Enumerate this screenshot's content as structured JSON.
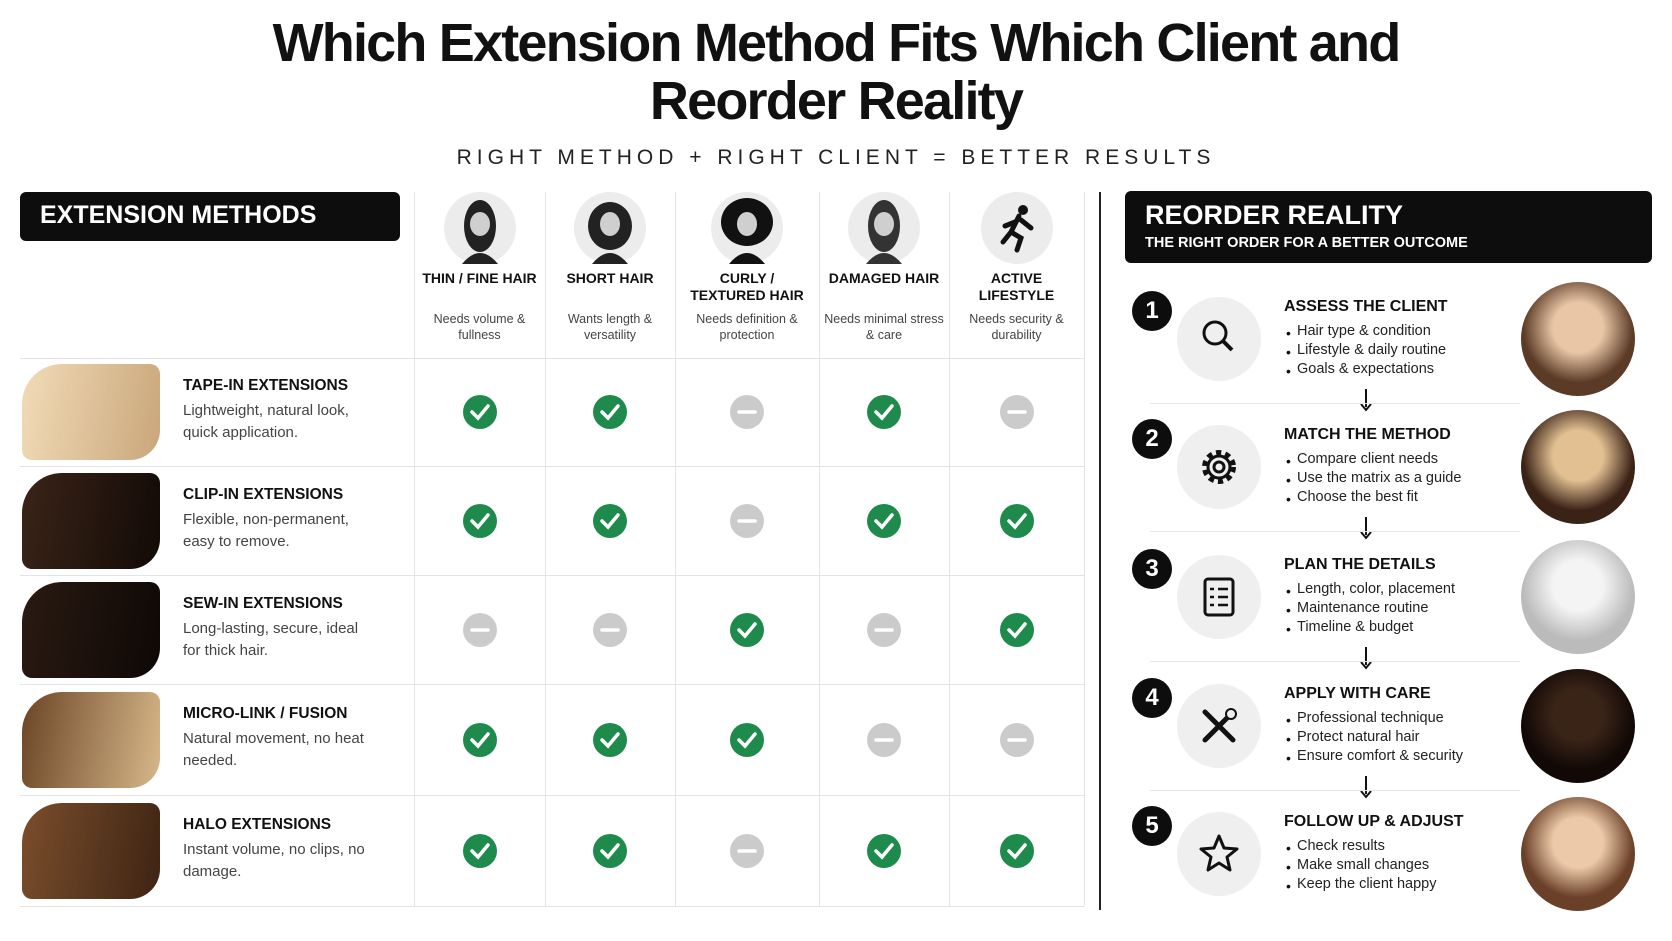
{
  "header": {
    "title": "Which Extension Method Fits Which Client and Reorder Reality",
    "subtitle": "RIGHT METHOD + RIGHT CLIENT = BETTER RESULTS"
  },
  "matrix": {
    "heading": "EXTENSION METHODS",
    "columns": [
      {
        "label": "THIN / FINE HAIR",
        "note": "Needs volume & fullness"
      },
      {
        "label": "SHORT HAIR",
        "note": "Wants length & versatility"
      },
      {
        "label": "CURLY / TEXTURED HAIR",
        "note": "Needs definition & protection"
      },
      {
        "label": "DAMAGED HAIR",
        "note": "Needs minimal stress & care"
      },
      {
        "label": "ACTIVE LIFESTYLE",
        "note": "Needs security & durability"
      }
    ],
    "rows": [
      {
        "name": "TAPE-IN EXTENSIONS",
        "description": "Lightweight, natural look, quick application.",
        "fits": [
          true,
          true,
          false,
          true,
          false
        ]
      },
      {
        "name": "CLIP-IN EXTENSIONS",
        "description": "Flexible, non-permanent, easy to remove.",
        "fits": [
          true,
          true,
          false,
          true,
          true
        ]
      },
      {
        "name": "SEW-IN EXTENSIONS",
        "description": "Long-lasting, secure, ideal for thick hair.",
        "fits": [
          false,
          false,
          true,
          false,
          true
        ]
      },
      {
        "name": "MICRO-LINK / FUSION",
        "description": "Natural movement, no heat needed.",
        "fits": [
          true,
          true,
          true,
          false,
          false
        ]
      },
      {
        "name": "HALO EXTENSIONS",
        "description": "Instant volume, no clips, no damage.",
        "fits": [
          true,
          true,
          false,
          true,
          true
        ]
      }
    ]
  },
  "reorder": {
    "heading": "REORDER REALITY",
    "subheading": "THE RIGHT ORDER FOR A BETTER OUTCOME",
    "steps": [
      {
        "number": 1,
        "title": "ASSESS THE CLIENT",
        "bullets": [
          "Hair type & condition",
          "Lifestyle & daily routine",
          "Goals & expectations"
        ]
      },
      {
        "number": 2,
        "title": "MATCH THE METHOD",
        "bullets": [
          "Compare client needs",
          "Use the matrix as a guide",
          "Choose the best fit"
        ]
      },
      {
        "number": 3,
        "title": "PLAN THE DETAILS",
        "bullets": [
          "Length, color, placement",
          "Maintenance routine",
          "Timeline & budget"
        ]
      },
      {
        "number": 4,
        "title": "APPLY WITH CARE",
        "bullets": [
          "Professional technique",
          "Protect natural hair",
          "Ensure comfort & security"
        ]
      },
      {
        "number": 5,
        "title": "FOLLOW UP & ADJUST",
        "bullets": [
          "Check results",
          "Make small changes",
          "Keep the client happy"
        ]
      }
    ]
  }
}
